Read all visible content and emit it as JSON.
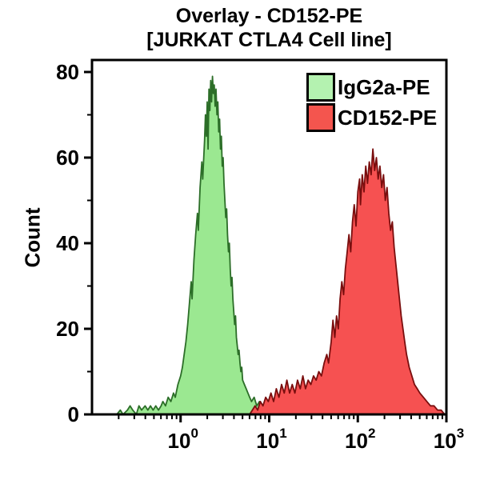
{
  "title": {
    "line1": "Overlay - CD152-PE",
    "line2": "[JURKAT CTLA4 Cell line]"
  },
  "legend": {
    "items": [
      {
        "label": "IgG2a-PE",
        "swatch_fill": "#b4f2b0"
      },
      {
        "label": "CD152-PE",
        "swatch_fill": "#f4554e"
      }
    ]
  },
  "chart_data": {
    "type": "area",
    "subtype": "flow-cytometry-histogram-overlay",
    "title": "Overlay - CD152-PE [JURKAT CTLA4 Cell line]",
    "xlabel": "",
    "ylabel": "Count",
    "x_scale": "log10",
    "xlim_log": [
      -1,
      3
    ],
    "ylim": [
      0,
      80
    ],
    "y_major_ticks": [
      0,
      20,
      40,
      60,
      80
    ],
    "y_minor_ticks": [
      10,
      30,
      50,
      70
    ],
    "x_major_ticks_log": [
      0,
      1,
      2,
      3
    ],
    "x_tick_base": "10",
    "axis_color": "#000000",
    "legend_position": "top-right-inside",
    "grid": false,
    "series": [
      {
        "name": "IgG2a-PE",
        "fill": "#9be891",
        "stroke": "#2c6e28",
        "peak_log_x": 0.36,
        "peak_count": 79,
        "points": [
          [
            -0.72,
            0
          ],
          [
            -0.68,
            1
          ],
          [
            -0.65,
            0
          ],
          [
            -0.6,
            1
          ],
          [
            -0.57,
            2
          ],
          [
            -0.54,
            1
          ],
          [
            -0.5,
            0
          ],
          [
            -0.47,
            2
          ],
          [
            -0.44,
            1
          ],
          [
            -0.4,
            2
          ],
          [
            -0.37,
            1
          ],
          [
            -0.34,
            2
          ],
          [
            -0.31,
            1
          ],
          [
            -0.28,
            2
          ],
          [
            -0.25,
            1
          ],
          [
            -0.22,
            2
          ],
          [
            -0.2,
            3
          ],
          [
            -0.17,
            2
          ],
          [
            -0.14,
            4
          ],
          [
            -0.11,
            3
          ],
          [
            -0.08,
            5
          ],
          [
            -0.06,
            4
          ],
          [
            -0.03,
            7
          ],
          [
            0.0,
            9
          ],
          [
            0.02,
            11
          ],
          [
            0.04,
            14
          ],
          [
            0.06,
            17
          ],
          [
            0.08,
            21
          ],
          [
            0.1,
            26
          ],
          [
            0.12,
            31
          ],
          [
            0.13,
            27
          ],
          [
            0.15,
            36
          ],
          [
            0.17,
            42
          ],
          [
            0.19,
            47
          ],
          [
            0.2,
            43
          ],
          [
            0.22,
            53
          ],
          [
            0.24,
            59
          ],
          [
            0.25,
            55
          ],
          [
            0.27,
            64
          ],
          [
            0.28,
            70
          ],
          [
            0.29,
            65
          ],
          [
            0.3,
            73
          ],
          [
            0.31,
            62
          ],
          [
            0.32,
            76
          ],
          [
            0.33,
            71
          ],
          [
            0.34,
            78
          ],
          [
            0.35,
            73
          ],
          [
            0.36,
            79
          ],
          [
            0.37,
            75
          ],
          [
            0.38,
            77
          ],
          [
            0.39,
            72
          ],
          [
            0.4,
            76
          ],
          [
            0.41,
            70
          ],
          [
            0.42,
            73
          ],
          [
            0.43,
            66
          ],
          [
            0.44,
            69
          ],
          [
            0.45,
            62
          ],
          [
            0.46,
            65
          ],
          [
            0.47,
            58
          ],
          [
            0.48,
            60
          ],
          [
            0.49,
            54
          ],
          [
            0.5,
            50
          ],
          [
            0.51,
            46
          ],
          [
            0.52,
            48
          ],
          [
            0.53,
            42
          ],
          [
            0.54,
            38
          ],
          [
            0.55,
            40
          ],
          [
            0.56,
            34
          ],
          [
            0.57,
            30
          ],
          [
            0.58,
            32
          ],
          [
            0.59,
            27
          ],
          [
            0.6,
            24
          ],
          [
            0.61,
            21
          ],
          [
            0.62,
            23
          ],
          [
            0.63,
            18
          ],
          [
            0.64,
            16
          ],
          [
            0.65,
            14
          ],
          [
            0.66,
            15
          ],
          [
            0.67,
            12
          ],
          [
            0.68,
            10
          ],
          [
            0.69,
            11
          ],
          [
            0.7,
            8
          ],
          [
            0.72,
            7
          ],
          [
            0.74,
            6
          ],
          [
            0.76,
            5
          ],
          [
            0.78,
            4
          ],
          [
            0.8,
            3
          ],
          [
            0.83,
            4
          ],
          [
            0.86,
            2
          ],
          [
            0.89,
            3
          ],
          [
            0.92,
            2
          ],
          [
            0.95,
            1
          ],
          [
            0.98,
            2
          ],
          [
            1.01,
            1
          ],
          [
            1.05,
            2
          ],
          [
            1.08,
            1
          ],
          [
            1.12,
            1
          ],
          [
            1.16,
            2
          ],
          [
            1.2,
            1
          ],
          [
            1.25,
            1
          ],
          [
            1.3,
            0
          ]
        ]
      },
      {
        "name": "CD152-PE",
        "fill": "#f65151",
        "stroke": "#7a0e0e",
        "peak_log_x": 2.17,
        "peak_count": 62,
        "points": [
          [
            0.78,
            0
          ],
          [
            0.81,
            1
          ],
          [
            0.84,
            2
          ],
          [
            0.87,
            1
          ],
          [
            0.9,
            3
          ],
          [
            0.93,
            2
          ],
          [
            0.96,
            4
          ],
          [
            0.99,
            3
          ],
          [
            1.02,
            5
          ],
          [
            1.05,
            3
          ],
          [
            1.08,
            6
          ],
          [
            1.11,
            4
          ],
          [
            1.14,
            7
          ],
          [
            1.17,
            5
          ],
          [
            1.2,
            8
          ],
          [
            1.23,
            5
          ],
          [
            1.26,
            7
          ],
          [
            1.29,
            5
          ],
          [
            1.32,
            8
          ],
          [
            1.35,
            6
          ],
          [
            1.38,
            9
          ],
          [
            1.41,
            6
          ],
          [
            1.44,
            8
          ],
          [
            1.47,
            7
          ],
          [
            1.5,
            9
          ],
          [
            1.53,
            8
          ],
          [
            1.56,
            10
          ],
          [
            1.59,
            9
          ],
          [
            1.62,
            12
          ],
          [
            1.65,
            14
          ],
          [
            1.67,
            12
          ],
          [
            1.7,
            17
          ],
          [
            1.72,
            22
          ],
          [
            1.74,
            18
          ],
          [
            1.76,
            23
          ],
          [
            1.78,
            20
          ],
          [
            1.8,
            27
          ],
          [
            1.82,
            31
          ],
          [
            1.84,
            28
          ],
          [
            1.86,
            34
          ],
          [
            1.88,
            38
          ],
          [
            1.9,
            42
          ],
          [
            1.92,
            38
          ],
          [
            1.94,
            45
          ],
          [
            1.96,
            49
          ],
          [
            1.98,
            44
          ],
          [
            2.0,
            52
          ],
          [
            2.02,
            55
          ],
          [
            2.03,
            49
          ],
          [
            2.05,
            56
          ],
          [
            2.07,
            52
          ],
          [
            2.09,
            58
          ],
          [
            2.11,
            54
          ],
          [
            2.13,
            59
          ],
          [
            2.15,
            56
          ],
          [
            2.17,
            62
          ],
          [
            2.19,
            57
          ],
          [
            2.21,
            60
          ],
          [
            2.23,
            55
          ],
          [
            2.25,
            58
          ],
          [
            2.27,
            53
          ],
          [
            2.29,
            56
          ],
          [
            2.31,
            50
          ],
          [
            2.33,
            53
          ],
          [
            2.35,
            47
          ],
          [
            2.37,
            43
          ],
          [
            2.39,
            45
          ],
          [
            2.41,
            39
          ],
          [
            2.43,
            35
          ],
          [
            2.45,
            31
          ],
          [
            2.47,
            27
          ],
          [
            2.49,
            23
          ],
          [
            2.51,
            20
          ],
          [
            2.53,
            17
          ],
          [
            2.55,
            14
          ],
          [
            2.58,
            11
          ],
          [
            2.61,
            9
          ],
          [
            2.64,
            7
          ],
          [
            2.67,
            6
          ],
          [
            2.7,
            5
          ],
          [
            2.74,
            4
          ],
          [
            2.78,
            3
          ],
          [
            2.82,
            2
          ],
          [
            2.86,
            2
          ],
          [
            2.9,
            1
          ],
          [
            2.94,
            1
          ],
          [
            2.98,
            0
          ]
        ]
      }
    ]
  }
}
